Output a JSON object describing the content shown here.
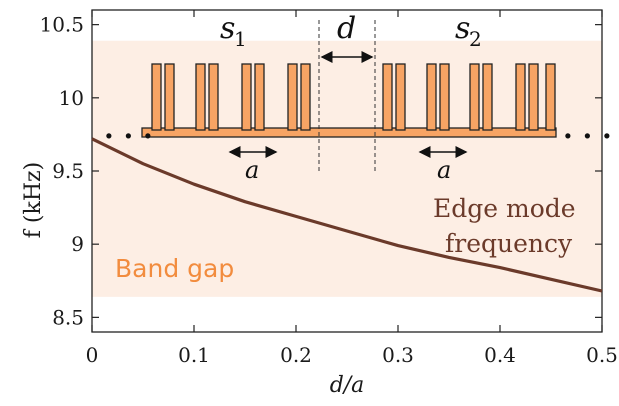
{
  "chart_data": {
    "type": "line",
    "xlabel": "d/a",
    "ylabel": "f (kHz)",
    "xlim": [
      0,
      0.5
    ],
    "ylim": [
      8.4,
      10.6
    ],
    "xticks": [
      "0",
      "0.1",
      "0.2",
      "0.3",
      "0.4",
      "0.5"
    ],
    "yticks": [
      "8.5",
      "9",
      "9.5",
      "10",
      "10.5"
    ],
    "band_gap": {
      "label": "Band gap",
      "f_min": 8.64,
      "f_max": 10.39
    },
    "series": [
      {
        "name": "Edge mode frequency",
        "x": [
          0,
          0.05,
          0.1,
          0.15,
          0.2,
          0.25,
          0.3,
          0.35,
          0.4,
          0.45,
          0.5
        ],
        "y": [
          9.72,
          9.55,
          9.41,
          9.29,
          9.19,
          9.09,
          8.99,
          8.91,
          8.84,
          8.76,
          8.68
        ]
      }
    ],
    "colors": {
      "band_gap": "#fdeee4",
      "band_gap_text": "#f28c3e",
      "curve": "#6b3a2a",
      "structure": "#f7a464"
    },
    "inset": {
      "labels": {
        "s1": "s",
        "s1_sub": "1",
        "s2": "s",
        "s2_sub": "2",
        "d": "d",
        "a_left": "a",
        "a_right": "a"
      },
      "dots": ". . .",
      "left_slot_heights": [
        1,
        1,
        1,
        1,
        1,
        1,
        1,
        1
      ],
      "right_slot_heights": [
        1,
        1,
        1,
        1,
        1,
        1,
        1,
        1
      ]
    }
  }
}
